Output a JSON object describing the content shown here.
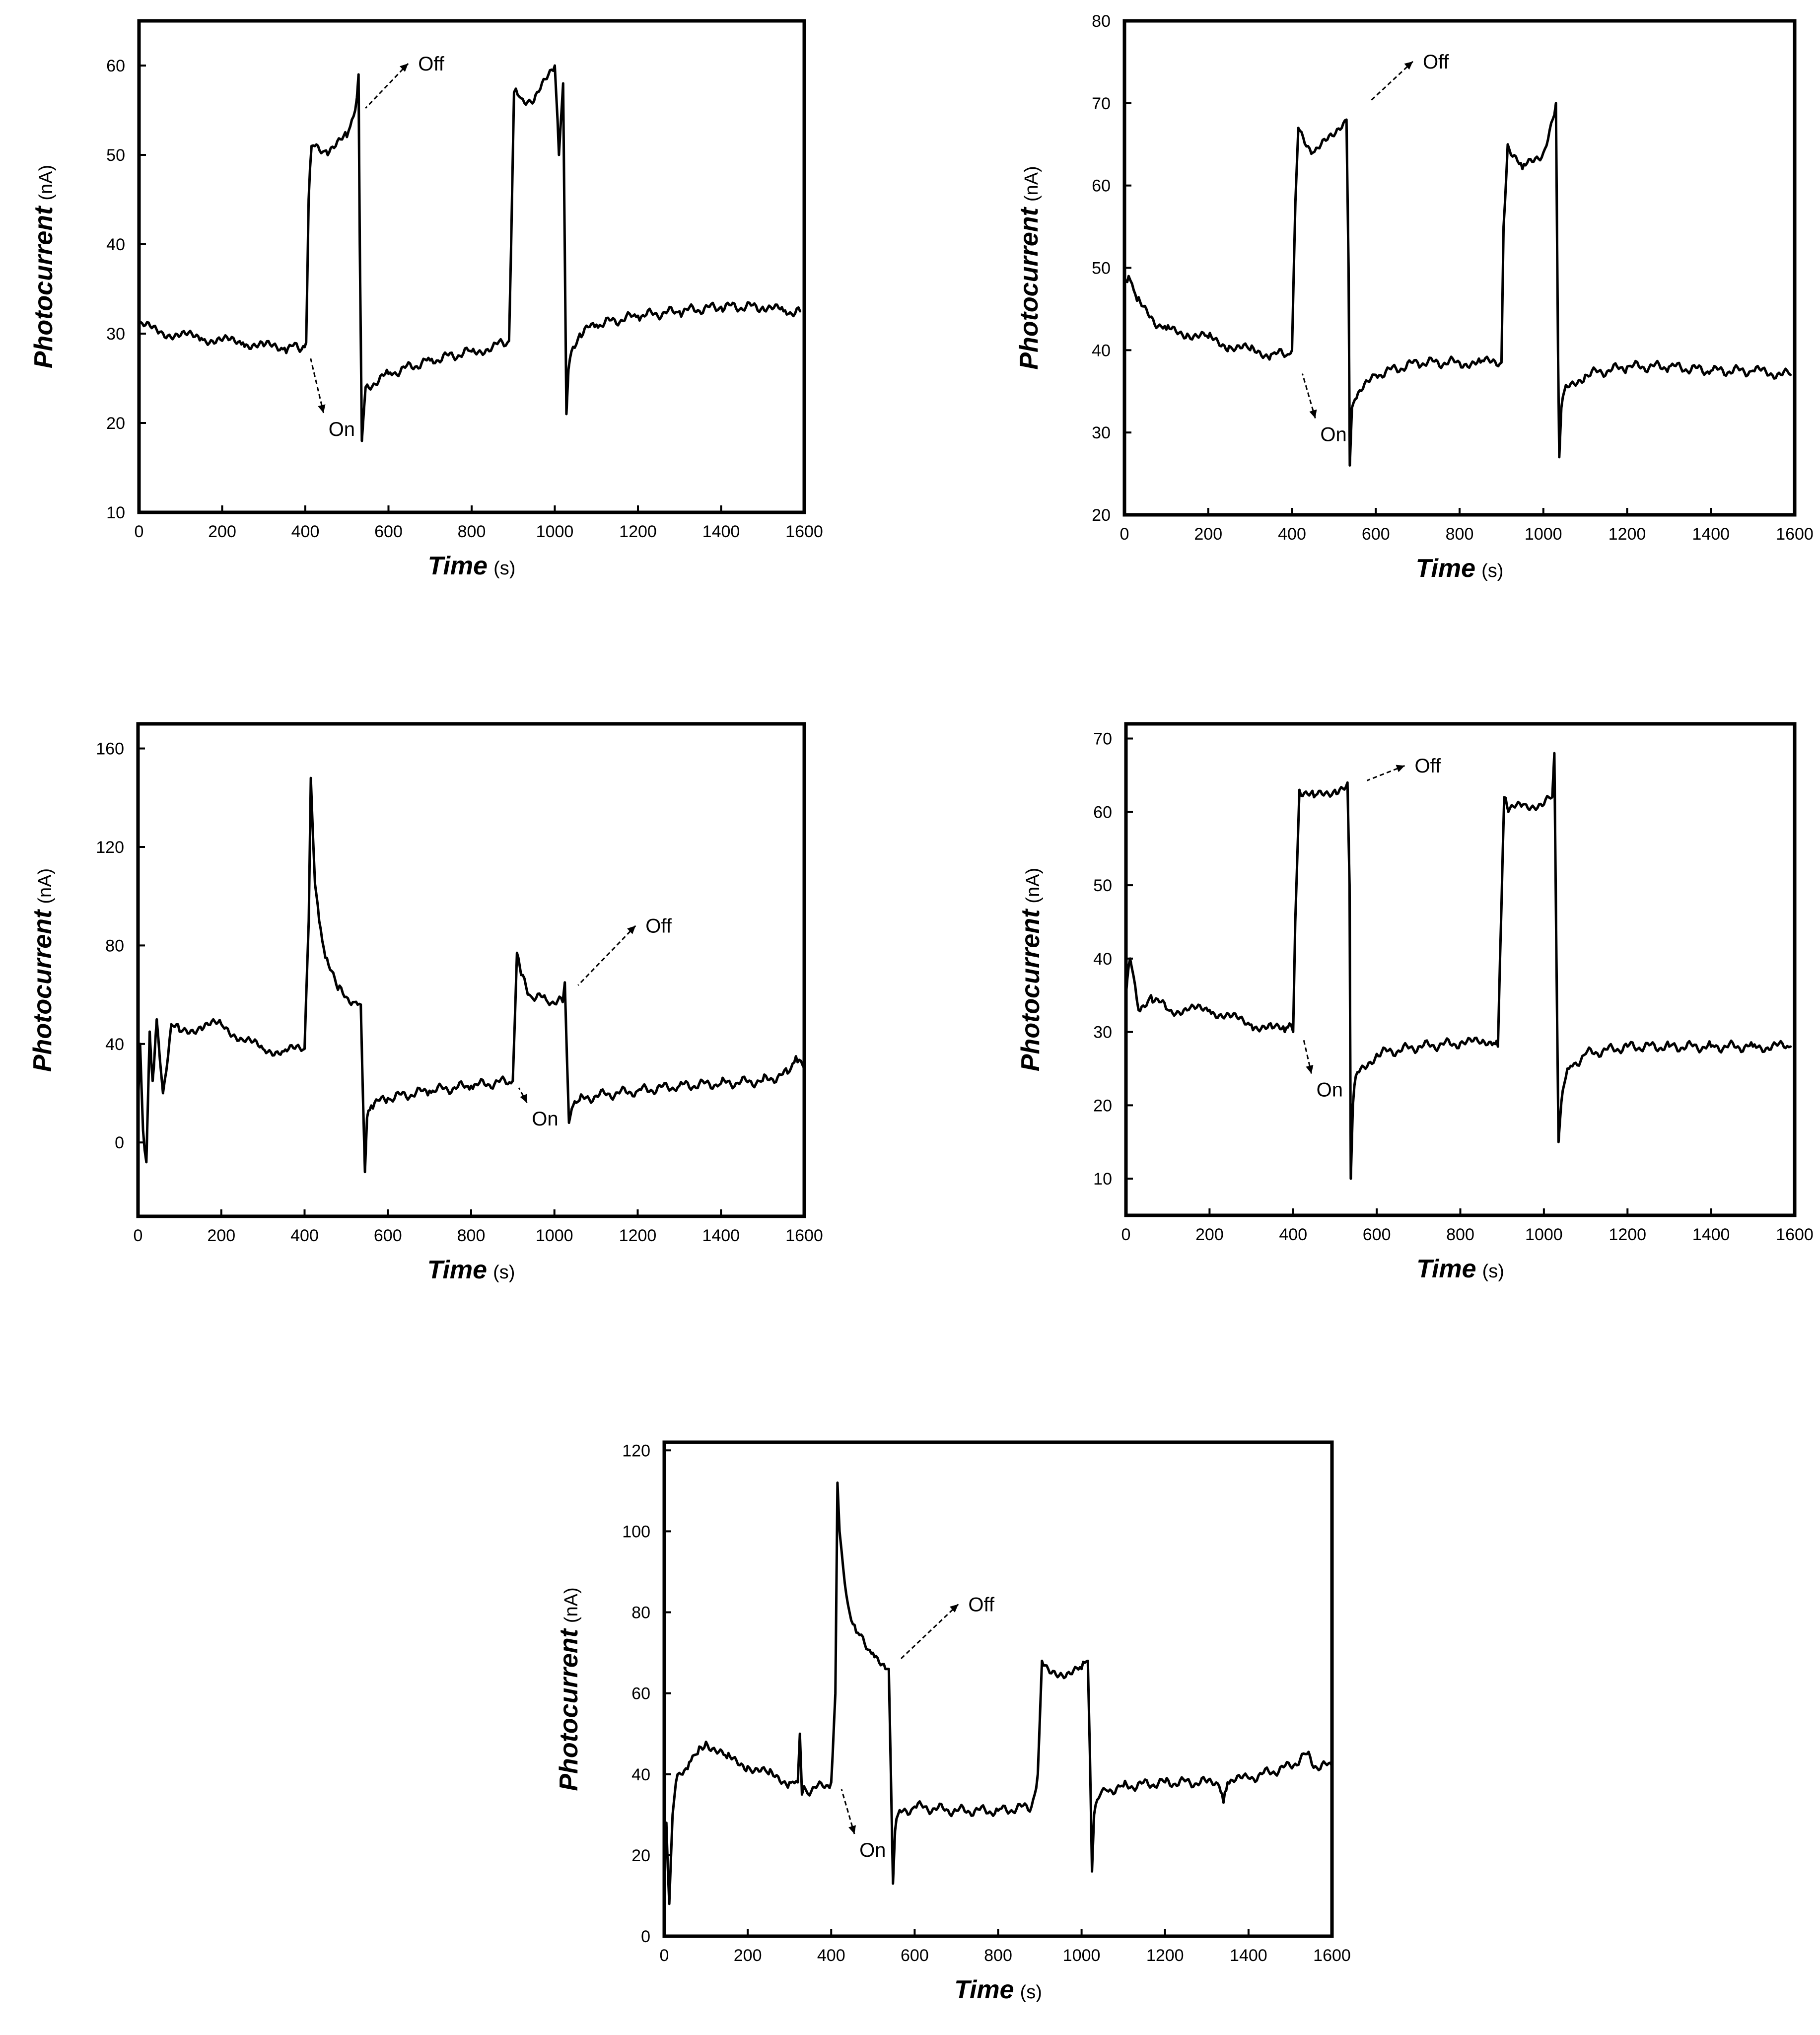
{
  "chart_data": [
    {
      "type": "line",
      "xlabel": "Time",
      "xunit": "(s)",
      "ylabel": "Photocurrent",
      "yunit": "(nA)",
      "xlim": [
        0,
        1600
      ],
      "ylim": [
        10,
        65
      ],
      "xticks": [
        0,
        200,
        400,
        600,
        800,
        1000,
        1200,
        1400,
        1600
      ],
      "yticks": [
        10,
        20,
        30,
        40,
        50,
        60
      ],
      "grid": false,
      "series": [
        {
          "x": [
            0,
            50,
            100,
            150,
            200,
            250,
            300,
            350,
            395,
            402,
            408,
            415,
            450,
            500,
            520,
            528,
            531,
            536,
            545,
            600,
            700,
            800,
            850,
            890,
            895,
            902,
            915,
            950,
            1000,
            1010,
            1020,
            1025,
            1028,
            1033,
            1040,
            1060,
            1100,
            1200,
            1300,
            1400,
            1500,
            1550,
            1590
          ],
          "y": [
            31,
            30.2,
            29.8,
            29.5,
            29.2,
            29,
            28.6,
            28.4,
            28.6,
            29,
            45,
            51,
            50.5,
            52,
            55,
            59,
            40,
            18,
            24,
            25.5,
            27,
            28,
            28.5,
            29.2,
            40,
            57,
            56.5,
            56,
            60,
            50,
            58,
            35,
            21,
            26,
            28,
            30,
            31,
            32,
            32.5,
            33,
            33,
            32.5,
            32.5
          ]
        }
      ],
      "annotations": [
        {
          "text": "Off",
          "target": [
            528,
            55
          ]
        },
        {
          "text": "On",
          "target": [
            408,
            28
          ]
        }
      ]
    },
    {
      "type": "line",
      "xlabel": "Time",
      "xunit": "(s)",
      "ylabel": "Photocurrent",
      "yunit": "(nA)",
      "xlim": [
        0,
        1600
      ],
      "ylim": [
        20,
        80
      ],
      "xticks": [
        0,
        200,
        400,
        600,
        800,
        1000,
        1200,
        1400,
        1600
      ],
      "yticks": [
        20,
        30,
        40,
        50,
        60,
        70,
        80
      ],
      "grid": false,
      "series": [
        {
          "x": [
            0,
            10,
            30,
            60,
            100,
            150,
            200,
            250,
            300,
            350,
            390,
            400,
            408,
            415,
            450,
            500,
            530,
            535,
            538,
            543,
            550,
            600,
            700,
            800,
            850,
            900,
            905,
            915,
            950,
            1000,
            1030,
            1035,
            1038,
            1043,
            1050,
            1100,
            1200,
            1300,
            1400,
            1500,
            1590
          ],
          "y": [
            48,
            49,
            46,
            44,
            42.5,
            42,
            41.5,
            40.5,
            40,
            39.5,
            39.5,
            40,
            58,
            67,
            64,
            66,
            68,
            50,
            26,
            33,
            34,
            37,
            38.5,
            38.5,
            38.5,
            38.5,
            55,
            65,
            62,
            64,
            70,
            40,
            27,
            33,
            35,
            37,
            38,
            38,
            37.5,
            37.5,
            37
          ]
        }
      ],
      "annotations": [
        {
          "text": "Off",
          "target": [
            570,
            70
          ]
        },
        {
          "text": "On",
          "target": [
            420,
            38
          ]
        }
      ]
    },
    {
      "type": "line",
      "xlabel": "Time",
      "xunit": "(s)",
      "ylabel": "Photocurrent",
      "yunit": "(nA)",
      "xlim": [
        0,
        1600
      ],
      "ylim": [
        -30,
        170
      ],
      "xticks": [
        0,
        200,
        400,
        600,
        800,
        1000,
        1200,
        1400,
        1600
      ],
      "yticks": [
        0,
        40,
        80,
        120,
        160
      ],
      "grid": false,
      "series": [
        {
          "x": [
            0,
            5,
            12,
            20,
            28,
            35,
            45,
            60,
            80,
            100,
            150,
            200,
            250,
            300,
            350,
            400,
            410,
            415,
            420,
            425,
            435,
            450,
            480,
            520,
            535,
            540,
            545,
            550,
            560,
            600,
            700,
            800,
            900,
            905,
            910,
            920,
            940,
            980,
            1020,
            1025,
            1030,
            1035,
            1045,
            1060,
            1100,
            1200,
            1300,
            1400,
            1500,
            1560,
            1580,
            1600
          ],
          "y": [
            15,
            40,
            5,
            -8,
            45,
            25,
            50,
            20,
            48,
            45,
            47,
            48,
            42,
            38,
            37,
            38,
            90,
            148,
            125,
            105,
            90,
            75,
            62,
            57,
            56,
            20,
            -12,
            10,
            15,
            18,
            21,
            23,
            25,
            50,
            77,
            68,
            60,
            58,
            57,
            65,
            35,
            8,
            15,
            17,
            19,
            21,
            23,
            24,
            25,
            28,
            35,
            30
          ]
        }
      ],
      "annotations": [
        {
          "text": "Off",
          "target": [
            1040,
            63
          ]
        },
        {
          "text": "On",
          "target": [
            910,
            25
          ]
        }
      ]
    },
    {
      "type": "line",
      "xlabel": "Time",
      "xunit": "(s)",
      "ylabel": "Photocurrent",
      "yunit": "(nA)",
      "xlim": [
        0,
        1600
      ],
      "ylim": [
        5,
        72
      ],
      "xticks": [
        0,
        200,
        400,
        600,
        800,
        1000,
        1200,
        1400,
        1600
      ],
      "yticks": [
        10,
        20,
        30,
        40,
        50,
        60,
        70
      ],
      "grid": false,
      "series": [
        {
          "x": [
            0,
            10,
            30,
            60,
            100,
            150,
            200,
            250,
            300,
            350,
            380,
            395,
            400,
            405,
            415,
            450,
            500,
            530,
            535,
            538,
            543,
            550,
            600,
            700,
            800,
            850,
            880,
            890,
            895,
            905,
            915,
            950,
            1000,
            1020,
            1025,
            1030,
            1035,
            1045,
            1060,
            1100,
            1200,
            1300,
            1400,
            1500,
            1590
          ],
          "y": [
            35,
            40,
            33,
            35,
            33,
            33,
            33,
            32,
            31,
            30.5,
            30,
            31,
            30,
            45,
            63,
            62,
            63,
            64,
            50,
            10,
            20,
            24,
            27,
            28,
            28.5,
            28.5,
            28.5,
            28,
            40,
            62,
            60,
            61,
            61,
            62,
            68,
            40,
            15,
            22,
            25,
            27,
            28,
            28,
            28,
            28,
            28
          ]
        }
      ],
      "annotations": [
        {
          "text": "Off",
          "target": [
            560,
            64
          ]
        },
        {
          "text": "On",
          "target": [
            420,
            30
          ]
        }
      ]
    },
    {
      "type": "line",
      "xlabel": "Time",
      "xunit": "(s)",
      "ylabel": "Photocurrent",
      "yunit": "(nA)",
      "xlim": [
        0,
        1600
      ],
      "ylim": [
        0,
        122
      ],
      "xticks": [
        0,
        200,
        400,
        600,
        800,
        1000,
        1200,
        1400,
        1600
      ],
      "yticks": [
        0,
        20,
        40,
        60,
        80,
        100,
        120
      ],
      "grid": false,
      "series": [
        {
          "x": [
            0,
            5,
            12,
            20,
            28,
            40,
            60,
            80,
            100,
            150,
            200,
            250,
            300,
            320,
            325,
            330,
            335,
            340,
            380,
            400,
            410,
            415,
            420,
            425,
            440,
            460,
            500,
            530,
            538,
            543,
            548,
            553,
            560,
            600,
            700,
            800,
            880,
            895,
            905,
            920,
            950,
            1000,
            1015,
            1020,
            1025,
            1030,
            1045,
            1060,
            1100,
            1200,
            1300,
            1330,
            1340,
            1350,
            1400,
            1500,
            1540,
            1560,
            1600
          ],
          "y": [
            15,
            28,
            8,
            30,
            38,
            40,
            43,
            45,
            48,
            44,
            42,
            40,
            38,
            38,
            50,
            35,
            37,
            36,
            37,
            38,
            60,
            112,
            100,
            95,
            82,
            75,
            70,
            66,
            66,
            40,
            13,
            26,
            30,
            32,
            31,
            31,
            32,
            40,
            68,
            66,
            65,
            66,
            68,
            45,
            16,
            30,
            35,
            36,
            37,
            38,
            38,
            37,
            33,
            38,
            39,
            42,
            45,
            42,
            42
          ]
        }
      ],
      "annotations": [
        {
          "text": "Off",
          "target": [
            550,
            68
          ]
        },
        {
          "text": "On",
          "target": [
            420,
            38
          ]
        }
      ]
    }
  ]
}
